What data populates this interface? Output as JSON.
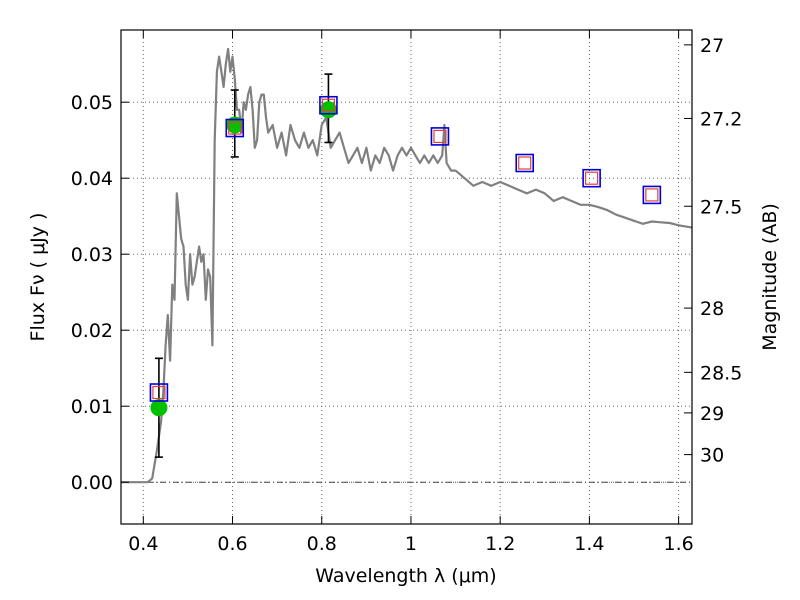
{
  "chart_data": {
    "type": "scatter",
    "title": "",
    "xlabel": "Wavelength  λ (μm)",
    "ylabel_left": "Flux  Fν  ( μJy )",
    "ylabel_right": "Magnitude (AB)",
    "xlim": [
      0.35,
      1.63
    ],
    "ylim": [
      -0.0055,
      0.0595
    ],
    "grid": true,
    "legend": "none",
    "x_ticks": [
      {
        "value": 0.4,
        "label": "0.4"
      },
      {
        "value": 0.6,
        "label": "0.6"
      },
      {
        "value": 0.8,
        "label": "0.8"
      },
      {
        "value": 1.0,
        "label": "1"
      },
      {
        "value": 1.2,
        "label": "1.2"
      },
      {
        "value": 1.4,
        "label": "1.4"
      },
      {
        "value": 1.6,
        "label": "1.6"
      }
    ],
    "y_ticks": [
      {
        "value": 0.0,
        "label": "0.00"
      },
      {
        "value": 0.01,
        "label": "0.01"
      },
      {
        "value": 0.02,
        "label": "0.02"
      },
      {
        "value": 0.03,
        "label": "0.03"
      },
      {
        "value": 0.04,
        "label": "0.04"
      },
      {
        "value": 0.05,
        "label": "0.05"
      }
    ],
    "right_ticks": [
      {
        "value": 27.0,
        "label": "27"
      },
      {
        "value": 27.2,
        "label": "27.2"
      },
      {
        "value": 27.5,
        "label": "27.5"
      },
      {
        "value": 28.0,
        "label": "28"
      },
      {
        "value": 28.5,
        "label": "28.5"
      },
      {
        "value": 29.0,
        "label": "29"
      },
      {
        "value": 30.0,
        "label": "30"
      }
    ],
    "colors": {
      "model": "#808080",
      "observed": "#00c000",
      "model_phot_outer": "#0000dd",
      "model_phot_inner": "#e04040",
      "errorbar": "#000000",
      "grid": "#666666"
    },
    "model_spectrum": {
      "x": [
        0.35,
        0.41,
        0.42,
        0.43,
        0.44,
        0.445,
        0.45,
        0.455,
        0.46,
        0.465,
        0.47,
        0.475,
        0.48,
        0.485,
        0.49,
        0.495,
        0.5,
        0.505,
        0.51,
        0.515,
        0.52,
        0.525,
        0.53,
        0.535,
        0.54,
        0.545,
        0.55,
        0.555,
        0.56,
        0.565,
        0.57,
        0.575,
        0.58,
        0.585,
        0.59,
        0.595,
        0.6,
        0.605,
        0.61,
        0.615,
        0.62,
        0.625,
        0.63,
        0.635,
        0.64,
        0.645,
        0.65,
        0.655,
        0.66,
        0.665,
        0.67,
        0.675,
        0.68,
        0.69,
        0.7,
        0.71,
        0.72,
        0.73,
        0.74,
        0.75,
        0.76,
        0.77,
        0.78,
        0.79,
        0.8,
        0.81,
        0.82,
        0.83,
        0.84,
        0.85,
        0.86,
        0.87,
        0.88,
        0.89,
        0.9,
        0.91,
        0.92,
        0.93,
        0.94,
        0.95,
        0.96,
        0.97,
        0.98,
        0.99,
        1.0,
        1.01,
        1.02,
        1.03,
        1.04,
        1.05,
        1.06,
        1.07,
        1.075,
        1.08,
        1.09,
        1.1,
        1.12,
        1.14,
        1.16,
        1.18,
        1.2,
        1.22,
        1.24,
        1.26,
        1.28,
        1.3,
        1.32,
        1.34,
        1.36,
        1.38,
        1.4,
        1.42,
        1.44,
        1.46,
        1.48,
        1.5,
        1.52,
        1.54,
        1.56,
        1.58,
        1.6,
        1.63
      ],
      "y": [
        0.0,
        0.0,
        0.0005,
        0.004,
        0.008,
        0.012,
        0.018,
        0.022,
        0.016,
        0.026,
        0.024,
        0.038,
        0.035,
        0.032,
        0.031,
        0.026,
        0.024,
        0.03,
        0.026,
        0.027,
        0.029,
        0.031,
        0.029,
        0.03,
        0.024,
        0.028,
        0.027,
        0.018,
        0.045,
        0.054,
        0.056,
        0.054,
        0.052,
        0.055,
        0.057,
        0.054,
        0.056,
        0.053,
        0.049,
        0.049,
        0.046,
        0.05,
        0.049,
        0.051,
        0.052,
        0.049,
        0.044,
        0.045,
        0.05,
        0.051,
        0.051,
        0.048,
        0.046,
        0.047,
        0.044,
        0.046,
        0.043,
        0.047,
        0.045,
        0.044,
        0.046,
        0.044,
        0.045,
        0.043,
        0.047,
        0.048,
        0.044,
        0.045,
        0.046,
        0.044,
        0.042,
        0.043,
        0.044,
        0.042,
        0.044,
        0.041,
        0.043,
        0.042,
        0.044,
        0.043,
        0.041,
        0.043,
        0.044,
        0.043,
        0.044,
        0.043,
        0.042,
        0.043,
        0.042,
        0.043,
        0.042,
        0.043,
        0.047,
        0.042,
        0.041,
        0.041,
        0.04,
        0.039,
        0.0395,
        0.039,
        0.0395,
        0.039,
        0.0385,
        0.038,
        0.0385,
        0.038,
        0.037,
        0.0375,
        0.037,
        0.0365,
        0.0365,
        0.0362,
        0.0358,
        0.0352,
        0.0348,
        0.0344,
        0.034,
        0.0343,
        0.0342,
        0.0341,
        0.0338,
        0.0335
      ]
    },
    "observed_photometry": {
      "x": [
        0.435,
        0.605,
        0.815
      ],
      "y": [
        0.0098,
        0.047,
        0.049
      ],
      "err_low": [
        0.0033,
        0.0428,
        0.0447
      ],
      "err_high": [
        0.0163,
        0.0516,
        0.0537
      ]
    },
    "model_photometry": {
      "x": [
        0.435,
        0.605,
        0.815,
        1.065,
        1.255,
        1.405,
        1.54
      ],
      "y": [
        0.0118,
        0.0466,
        0.0496,
        0.0455,
        0.042,
        0.04,
        0.0378
      ]
    }
  }
}
